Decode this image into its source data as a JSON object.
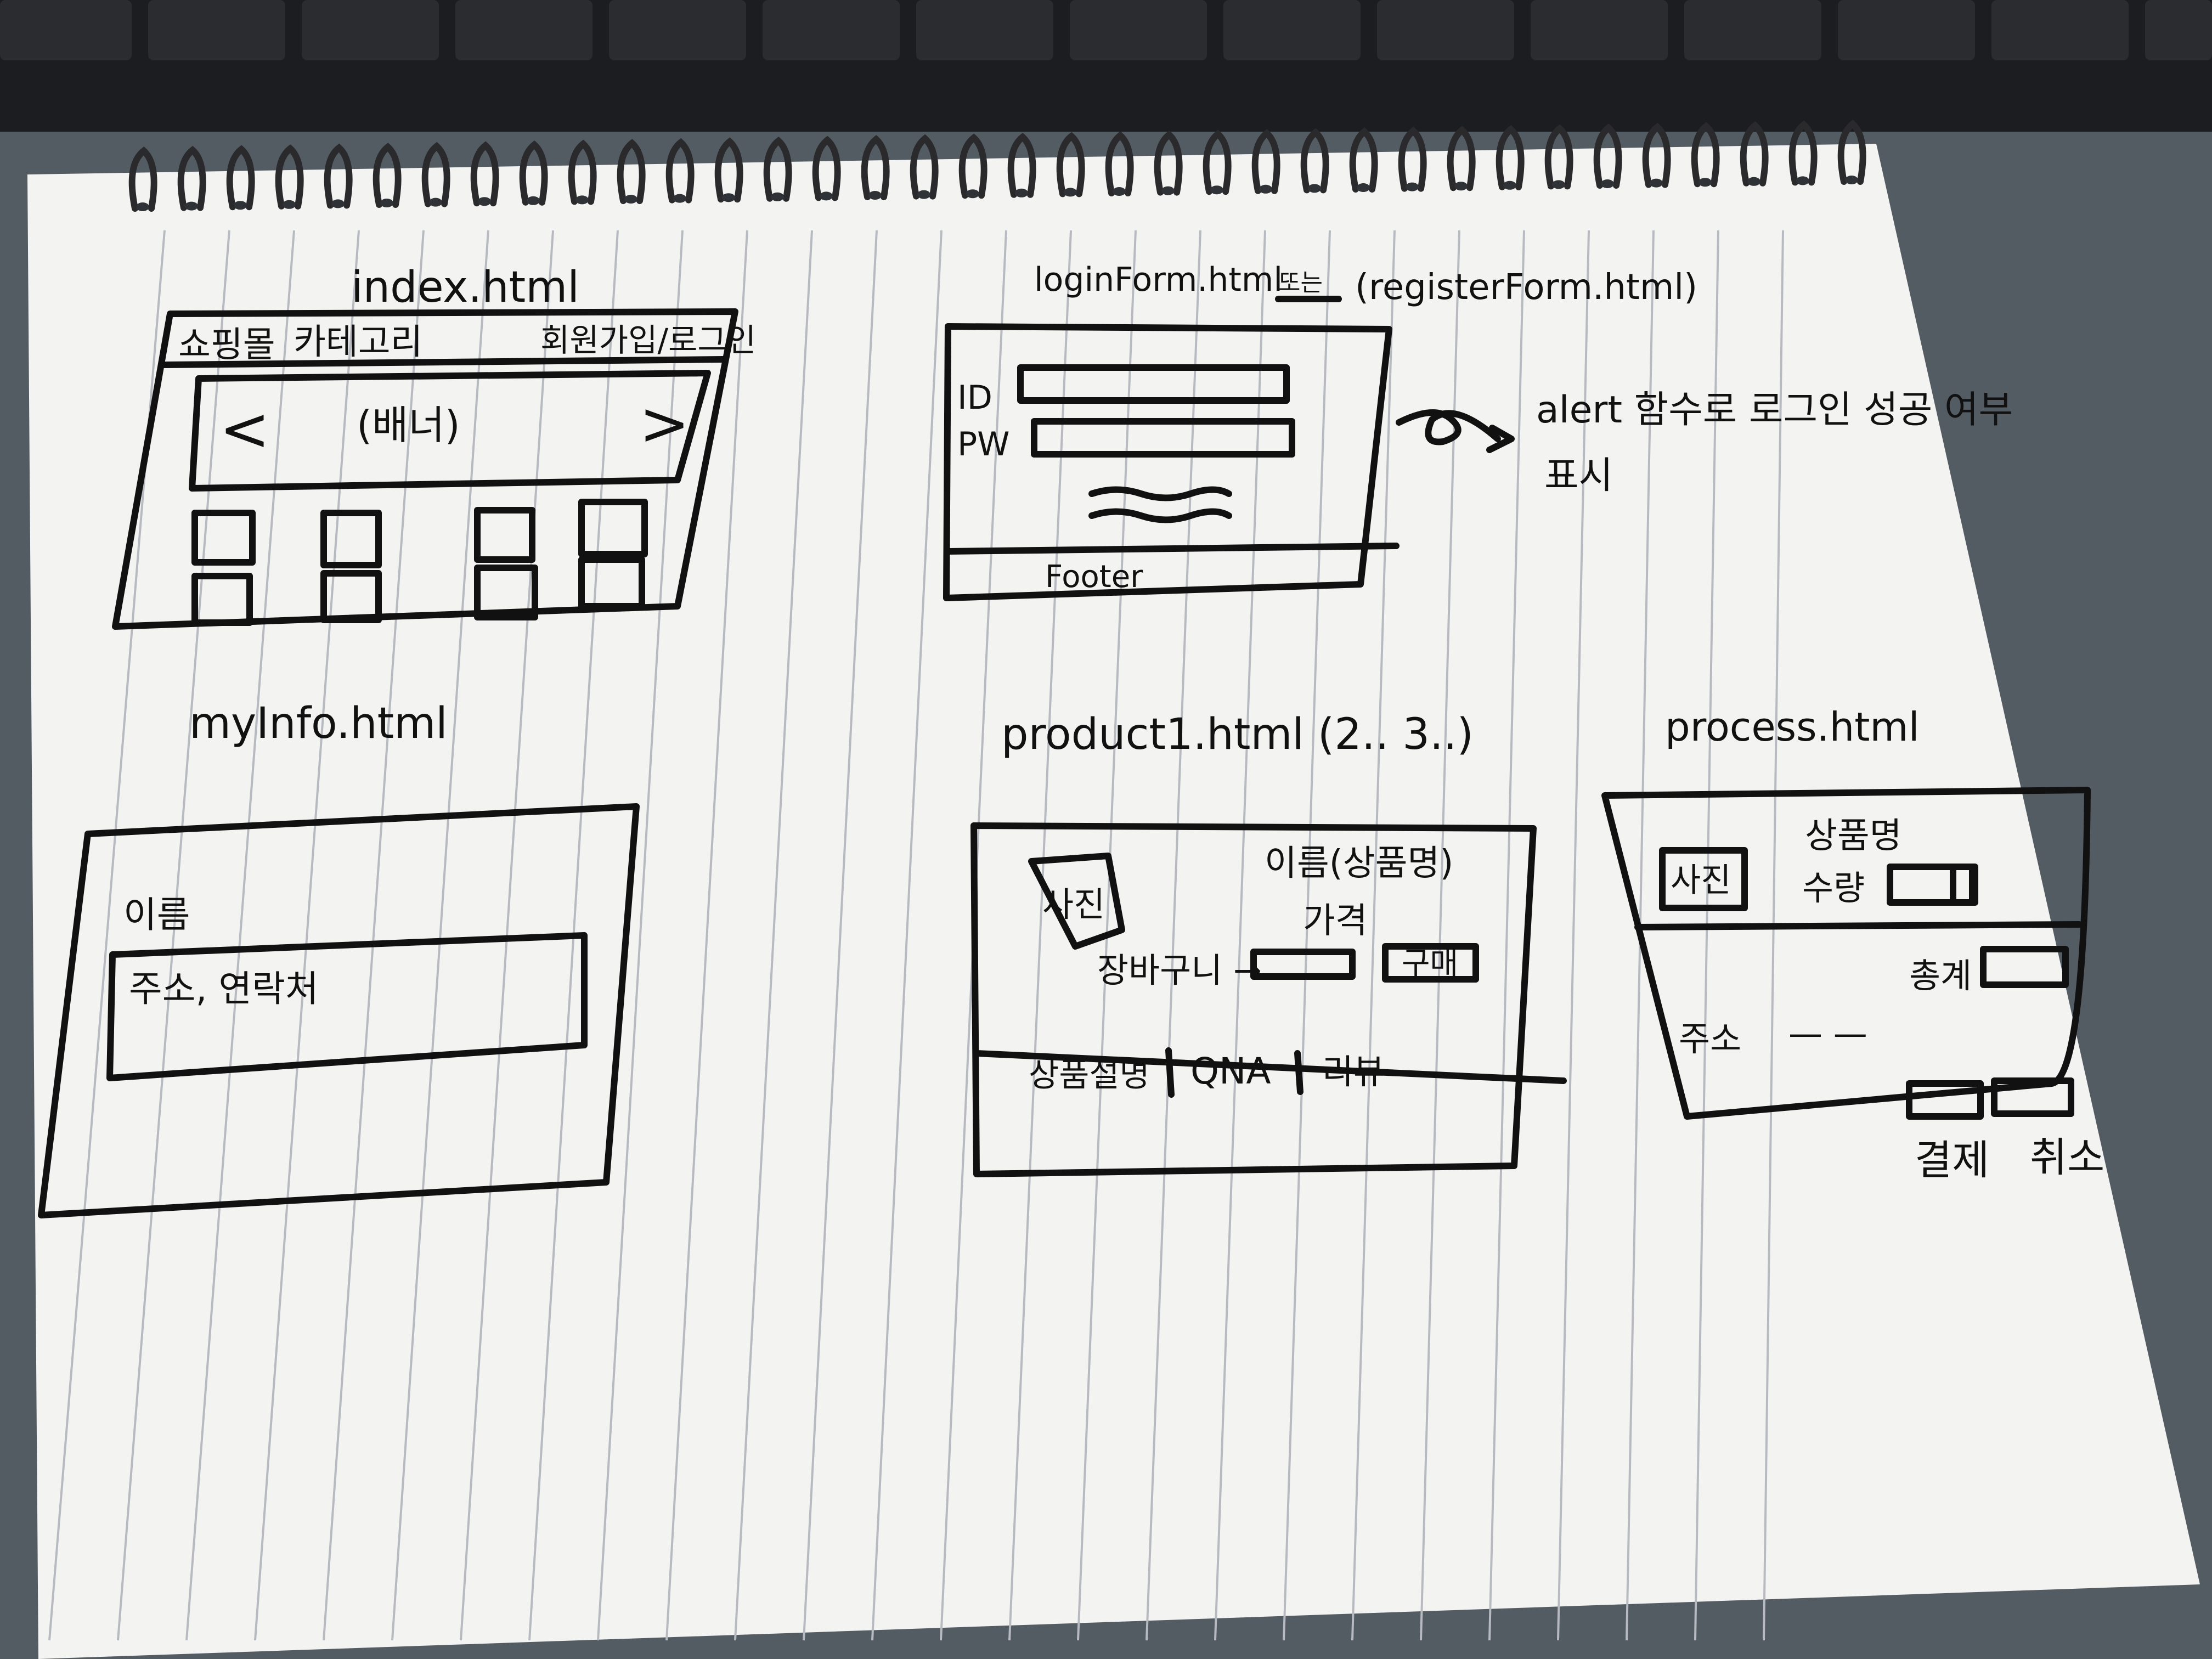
{
  "colors": {
    "keyboard": "#1c1d20",
    "desk": "#545c63",
    "paper": "#f3f3f1",
    "rule_line": "#b7bac0",
    "ink": "#111111",
    "spiral": "#2a2a2c"
  },
  "notes": {
    "index": {
      "title": "index.html",
      "nav_shop": "쇼핑몰",
      "nav_category": "카테고리",
      "nav_auth": "회원가입/로그인",
      "banner": "(배너)",
      "prev": "<",
      "next": ">"
    },
    "login": {
      "title": "loginForm.html",
      "title_mark": "또는",
      "title_alt": "(registerForm.html)",
      "id_label": "ID",
      "pw_label": "PW",
      "footer": "Footer",
      "annotation_line1": "alert 함수로 로그인 성공 여부",
      "annotation_line2": "표시"
    },
    "myinfo": {
      "title": "myInfo.html",
      "name_label": "이름",
      "address_label": "주소, 연락처"
    },
    "product": {
      "title": "product1.html (2.. 3..)",
      "photo": "사진",
      "name": "이름(상품명)",
      "price": "가격",
      "cart_label": "장바구니 →",
      "buy": "구매",
      "tab_desc": "상품설명",
      "tab_qna": "QNA",
      "tab_review": "리뷰"
    },
    "process": {
      "title": "process.html",
      "product_name": "상품명",
      "photo": "사진",
      "quantity": "수량",
      "total": "총계",
      "address": "주소",
      "address_value": "— —",
      "pay": "결제",
      "cancel": "취소"
    }
  }
}
